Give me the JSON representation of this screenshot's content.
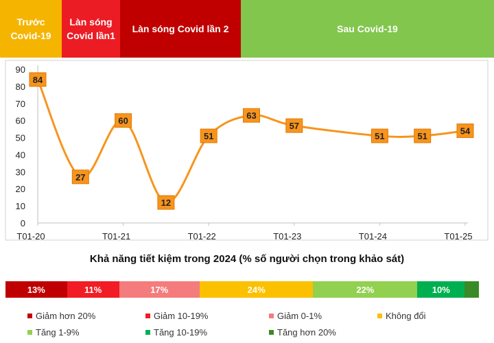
{
  "phases": [
    {
      "label": "Trước Covid-19",
      "color": "#f5b400"
    },
    {
      "label": "Làn sóng Covid lần1",
      "color": "#ec1c24"
    },
    {
      "label": "Làn sóng Covid lần 2",
      "color": "#c00000"
    },
    {
      "label": "Sau Covid-19",
      "color": "#82c64e"
    }
  ],
  "chart_data": {
    "type": "line",
    "title": "Khả năng tiết kiệm trong 2024 (% số người chọn trong khảo sát)",
    "x_ticks": [
      "T01-20",
      "T01-21",
      "T01-22",
      "T01-23",
      "T01-24",
      "T01-25"
    ],
    "ylim": [
      0,
      90
    ],
    "y_ticks": [
      0,
      10,
      20,
      30,
      40,
      50,
      60,
      70,
      80,
      90
    ],
    "grid": false,
    "series": [
      {
        "name": "Khả năng tiết kiệm",
        "color": "#f7941d",
        "x": [
          0,
          0.5,
          1,
          1.5,
          2,
          2.5,
          3,
          4,
          4.5,
          5
        ],
        "values": [
          84,
          27,
          60,
          12,
          51,
          63,
          57,
          51,
          51,
          54
        ]
      }
    ]
  },
  "distribution": [
    {
      "label": "13%",
      "value": 13,
      "color": "#c00000"
    },
    {
      "label": "11%",
      "value": 11,
      "color": "#f21c24"
    },
    {
      "label": "17%",
      "value": 17,
      "color": "#f47c7c"
    },
    {
      "label": "24%",
      "value": 24,
      "color": "#fbc000"
    },
    {
      "label": "22%",
      "value": 22,
      "color": "#92d050"
    },
    {
      "label": "10%",
      "value": 10,
      "color": "#00b050"
    },
    {
      "label": "",
      "value": 3,
      "color": "#3a8a28"
    }
  ],
  "legend": [
    {
      "label": "Giảm hơn 20%",
      "color": "#c00000"
    },
    {
      "label": "Giảm 10-19%",
      "color": "#f21c24"
    },
    {
      "label": "Giảm 0-1%",
      "color": "#f47c7c"
    },
    {
      "label": "Không đổi",
      "color": "#fbc000"
    },
    {
      "label": "Tăng 1-9%",
      "color": "#92d050"
    },
    {
      "label": "Tăng 10-19%",
      "color": "#00b050"
    },
    {
      "label": "Tăng hơn 20%",
      "color": "#3a8a28"
    }
  ]
}
